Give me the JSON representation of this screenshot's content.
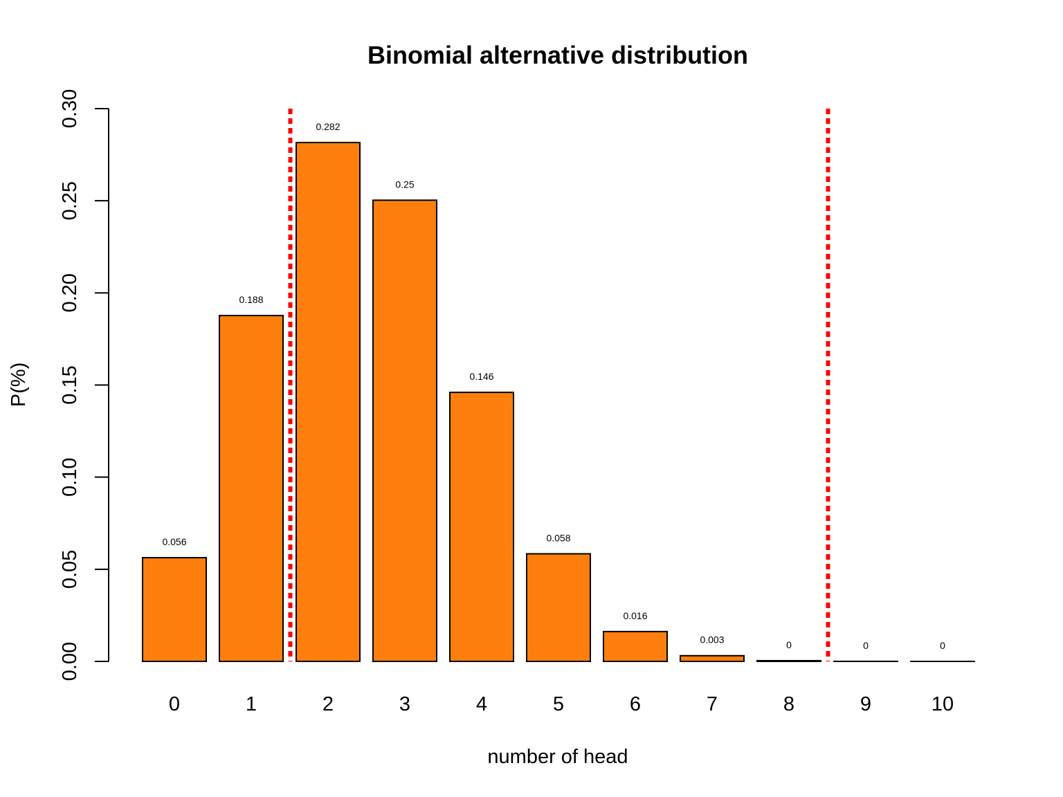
{
  "chart_data": {
    "type": "bar",
    "title": "Binomial alternative distribution",
    "xlabel": "number of head",
    "ylabel": "P(%)",
    "categories": [
      "0",
      "1",
      "2",
      "3",
      "4",
      "5",
      "6",
      "7",
      "8",
      "9",
      "10"
    ],
    "values": [
      0.0563,
      0.1877,
      0.2816,
      0.2503,
      0.146,
      0.0584,
      0.0162,
      0.0031,
      0.0004,
      3e-05,
      1e-06
    ],
    "value_labels": [
      "0.056",
      "0.188",
      "0.282",
      "0.25",
      "0.146",
      "0.058",
      "0.016",
      "0.003",
      "0",
      "0",
      "0"
    ],
    "ylim": [
      0,
      0.3
    ],
    "yticks": [
      0,
      0.05,
      0.1,
      0.15,
      0.2,
      0.25,
      0.3
    ],
    "ytick_labels": [
      "0.00",
      "0.05",
      "0.10",
      "0.15",
      "0.20",
      "0.25",
      "0.30"
    ],
    "grid": false,
    "bar_color": "#ff7f0e",
    "bar_edge_color": "#000000",
    "reference_lines": [
      {
        "x_between": [
          "1",
          "2"
        ],
        "color": "#ff0000",
        "style": "dotted"
      },
      {
        "x_between": [
          "8",
          "9"
        ],
        "color": "#ff0000",
        "style": "dotted"
      }
    ]
  }
}
